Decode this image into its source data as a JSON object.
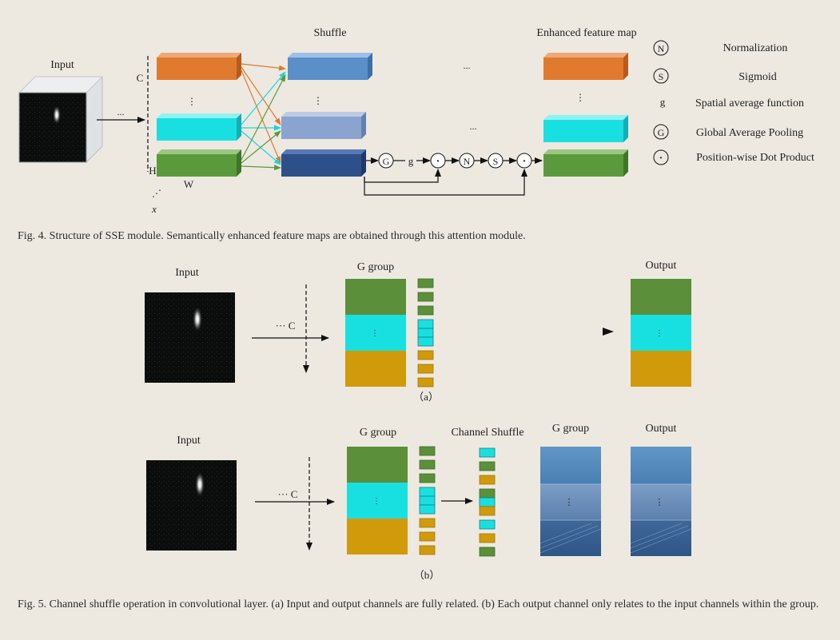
{
  "fig4": {
    "input_label": "Input",
    "shuffle_label": "Shuffle",
    "enhanced_label": "Enhanced feature map",
    "dim_c": "C",
    "dim_h": "H",
    "dim_w": "W",
    "dim_x": "x",
    "ellipsis": "...",
    "vdots": "⋮",
    "ddots": "⋰",
    "chain_g": "g",
    "symbols": {
      "n": "N",
      "s": "S",
      "g_pool": "G",
      "dot": "·"
    },
    "legend": [
      {
        "symbol": "N",
        "circled": true,
        "text": "Normalization"
      },
      {
        "symbol": "S",
        "circled": true,
        "text": "Sigmoid"
      },
      {
        "symbol": "g",
        "circled": false,
        "text": "Spatial average function"
      },
      {
        "symbol": "G",
        "circled": true,
        "text": "Global Average Pooling"
      },
      {
        "symbol": "·",
        "circled": true,
        "text": "Position-wise Dot Product"
      }
    ],
    "caption": "Fig. 4.   Structure of SSE module. Semantically enhanced feature maps are obtained through this attention module."
  },
  "fig5a": {
    "input_label": "Input",
    "group_label": "G group",
    "output_label": "Output",
    "c_label": "··· C",
    "sub_label": "（a）"
  },
  "fig5b": {
    "input_label": "Input",
    "group_label": "G group",
    "shuffle_label": "Channel Shuffle",
    "group2_label": "G group",
    "output_label": "Output",
    "c_label": "··· C",
    "sub_label": "（b）"
  },
  "fig5_caption": "Fig. 5.   Channel shuffle operation in convolutional layer. (a) Input and output channels are fully related. (b) Each output channel only relates to the input channels within the group.",
  "colors": {
    "orange": "#e07a2e",
    "cyan": "#19e0e0",
    "green": "#5b9a3c",
    "blue_light": "#5a8fc8",
    "blue_pale": "#8aa4cf",
    "blue_dark": "#2d4f8a",
    "gold": "#d19a0a",
    "steel": "#4f7fb0"
  }
}
